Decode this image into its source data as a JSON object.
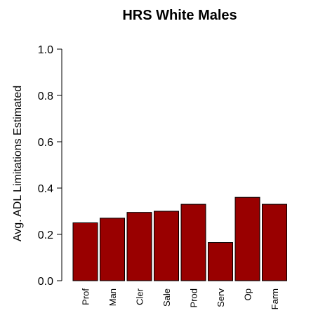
{
  "chart_data": {
    "type": "bar",
    "title": "HRS White Males",
    "ylabel": "Avg. ADL Limitations Estimated",
    "xlabel": "",
    "categories": [
      "Prof",
      "Man",
      "Cler",
      "Sale",
      "Prod",
      "Serv",
      "Op",
      "Farm"
    ],
    "values": [
      0.25,
      0.27,
      0.295,
      0.3,
      0.33,
      0.165,
      0.36,
      0.33
    ],
    "ylim": [
      0,
      1.0
    ],
    "yticks": [
      "0.0",
      "0.2",
      "0.4",
      "0.6",
      "0.8",
      "1.0"
    ],
    "bar_color": "#990000",
    "grid": false,
    "legend": "none"
  }
}
